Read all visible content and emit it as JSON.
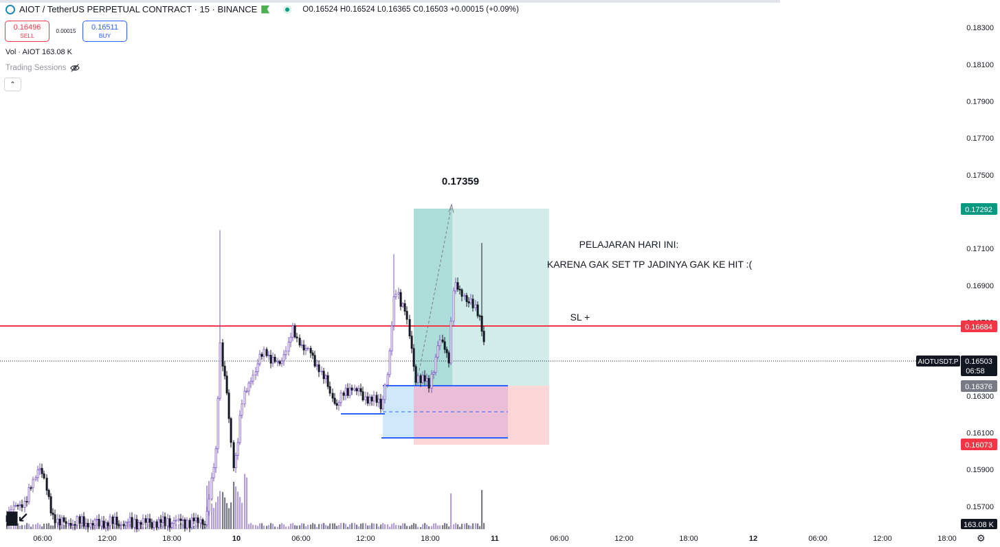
{
  "header": {
    "title": "AIOT / TetherUS PERPETUAL CONTRACT · 15 · BINANCE",
    "ohlc": "O0.16524  H0.16524  L0.16365  C0.16503  +0.00015 (+0.09%)"
  },
  "trade": {
    "sell_price": "0.16496",
    "sell_label": "SELL",
    "spread": "0.00015",
    "buy_price": "0.16511",
    "buy_label": "BUY"
  },
  "volume_label": "Vol · AIOT  163.08 K",
  "sessions_label": "Trading Sessions",
  "collapse_icon": "chevron-up",
  "axis": {
    "price_ticks": [
      "0.18300",
      "0.18100",
      "0.17900",
      "0.17700",
      "0.17500",
      "0.17100",
      "0.16900",
      "0.16700",
      "0.16300",
      "0.16100",
      "0.15900",
      "0.15700"
    ],
    "time_ticks": [
      "06:00",
      "12:00",
      "18:00",
      "10",
      "06:00",
      "12:00",
      "18:00",
      "11",
      "06:00",
      "12:00",
      "18:00",
      "12",
      "06:00",
      "12:00",
      "18:00"
    ],
    "ymin": 0.1558,
    "ymax": 0.1845
  },
  "price_labels": {
    "tp": "0.17292",
    "line": "0.16684",
    "symbol": "AIOTUSDT.P",
    "last": "0.16503",
    "countdown": "06:58",
    "entry": "0.16376",
    "sl": "0.16073",
    "volume": "163.08 K"
  },
  "annotations": {
    "peak": "0.17359",
    "lesson_1": "PELAJARAN HARI INI:",
    "lesson_2": "KARENA GAK SET TP JADINYA GAK KE HIT :(",
    "sl_note": "SL +"
  },
  "colors": {
    "up": "#7e57c2",
    "down": "#131722",
    "horizontal_line": "#f23645",
    "profit_zone": "#b2dfdb",
    "loss_zone": "#f8c8cc",
    "box": "#2962ff",
    "tp_label": "#089981",
    "sl_label": "#f23645",
    "entry_label": "#787b86"
  }
}
